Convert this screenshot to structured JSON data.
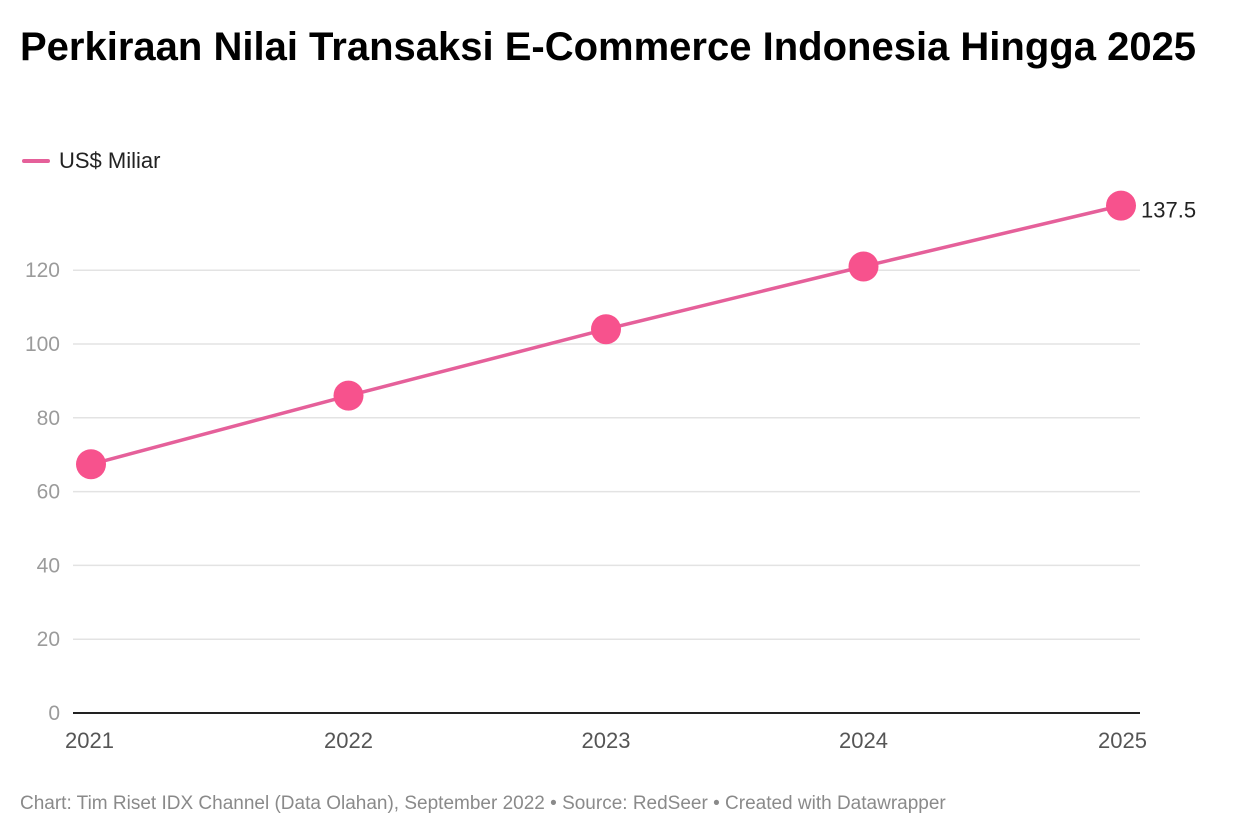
{
  "chart_data": {
    "type": "line",
    "title": "Perkiraan Nilai Transaksi E-Commerce Indonesia Hingga 2025",
    "categories": [
      "2021",
      "2022",
      "2023",
      "2024",
      "2025"
    ],
    "series": [
      {
        "name": "US$ Miliar",
        "values": [
          67.4,
          86,
          104,
          121,
          137.5
        ],
        "color": "#e5609a",
        "marker_color": "#f7528d"
      }
    ],
    "data_labels": [
      {
        "category": "2025",
        "text": "137.5"
      }
    ],
    "y_ticks": [
      "0",
      "20",
      "40",
      "60",
      "80",
      "100",
      "120"
    ],
    "ylim": [
      0,
      140
    ],
    "xlabel": "",
    "ylabel": "",
    "grid": true,
    "legend_position": "top-left"
  },
  "footer": {
    "text": "Chart: Tim Riset IDX Channel (Data Olahan), September 2022 • Source: RedSeer • Created with Datawrapper"
  },
  "colors": {
    "grid": "#e3e3e3",
    "axis": "#222222",
    "tick_text": "#9b9b9b",
    "category_text": "#555555"
  }
}
